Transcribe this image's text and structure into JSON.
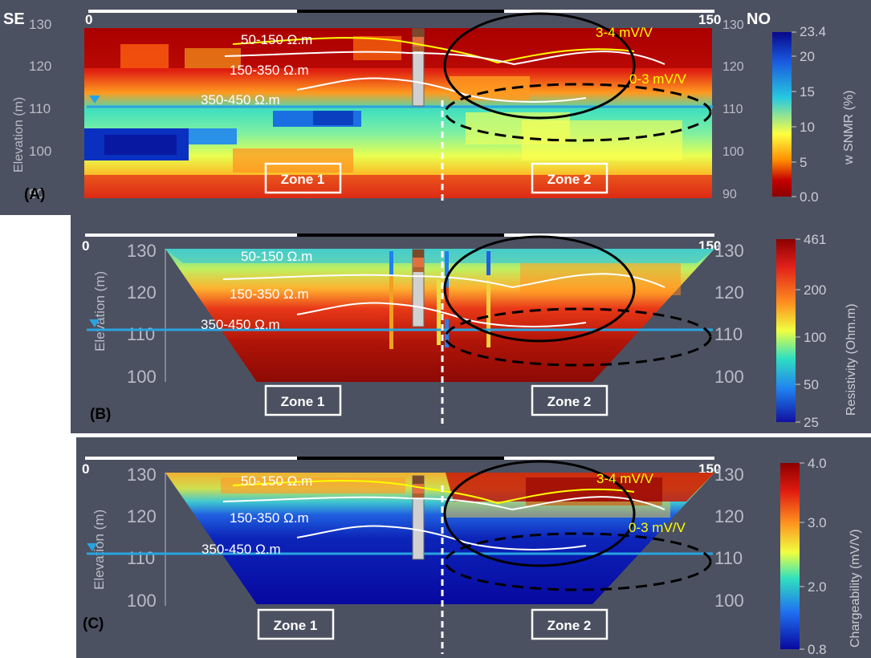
{
  "orientation": {
    "left": "SE",
    "right": "NO"
  },
  "colors": {
    "background": "#4c5161",
    "water_table": "#29a3e0",
    "isoline_white": "#ffffff",
    "isoline_yellow": "#ffff00",
    "zone_divider": "#ffffff",
    "ellipse": "#000000"
  },
  "iso_labels": {
    "r1": "50-150 Ω.m",
    "r2": "150-350 Ω.m",
    "r3": "350-450 Ω.m"
  },
  "ip_labels": {
    "high": "3-4 mV/V",
    "low": "0-3 mV/V"
  },
  "zones": {
    "z1": "Zone 1",
    "z2": "Zone 2"
  },
  "panels": {
    "a": {
      "letter": "(A)",
      "distance_start": "0",
      "distance_end": "150",
      "y_axis_label": "Elevation (m)",
      "y_ticks": [
        "130",
        "120",
        "110",
        "100",
        "90"
      ],
      "colorbar": {
        "title": "w SNMR (%)",
        "ticks": [
          "23.4",
          "20",
          "15",
          "10",
          "5",
          "0.0"
        ],
        "gradient": [
          "#08088c",
          "#1a5ae0",
          "#27c9e0",
          "#ffff40",
          "#ff8c00",
          "#c40000",
          "#8c0000"
        ]
      }
    },
    "b": {
      "letter": "(B)",
      "distance_start": "0",
      "distance_end": "150",
      "y_axis_label": "Elevation (m)",
      "y_ticks": [
        "130",
        "120",
        "110",
        "100"
      ],
      "colorbar": {
        "title": "Resistivity (Ohm.m)",
        "ticks": [
          "461",
          "200",
          "100",
          "50",
          "25"
        ],
        "gradient": [
          "#8c0000",
          "#e0201a",
          "#ff9020",
          "#f0ff40",
          "#30e0c0",
          "#2080f0",
          "#1010a0"
        ]
      }
    },
    "c": {
      "letter": "(C)",
      "distance_start": "0",
      "distance_end": "150",
      "y_axis_label": "Elevation (m)",
      "y_ticks": [
        "130",
        "120",
        "110",
        "100"
      ],
      "colorbar": {
        "title": "Chargeability (mV/V)",
        "ticks": [
          "4.0",
          "3.0",
          "2.0",
          "0.8"
        ],
        "gradient": [
          "#8c0000",
          "#e01a10",
          "#ff9020",
          "#f0ff40",
          "#30e0c0",
          "#2070f0",
          "#0808a0"
        ]
      }
    }
  }
}
